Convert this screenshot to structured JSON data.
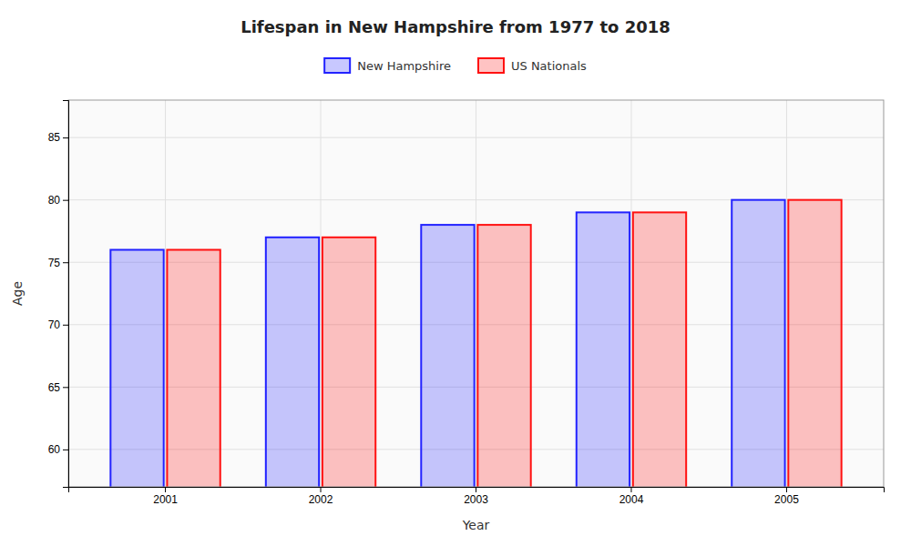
{
  "chart_data": {
    "type": "bar",
    "title": "Lifespan in New Hampshire from 1977 to 2018",
    "x_label": "Year",
    "y_label": "Age",
    "categories": [
      "2001",
      "2002",
      "2003",
      "2004",
      "2005"
    ],
    "series": [
      {
        "name": "New Hampshire",
        "color": "#2222ff",
        "values": [
          76.0,
          77.0,
          78.0,
          79.0,
          80.0
        ]
      },
      {
        "name": "US Nationals",
        "color": "#ff1111",
        "values": [
          76.0,
          77.0,
          78.0,
          79.0,
          80.0
        ]
      }
    ],
    "ylim": [
      57,
      88
    ],
    "yticks": [
      60,
      65,
      70,
      75,
      80,
      85
    ],
    "grid": true,
    "legend": "top"
  }
}
